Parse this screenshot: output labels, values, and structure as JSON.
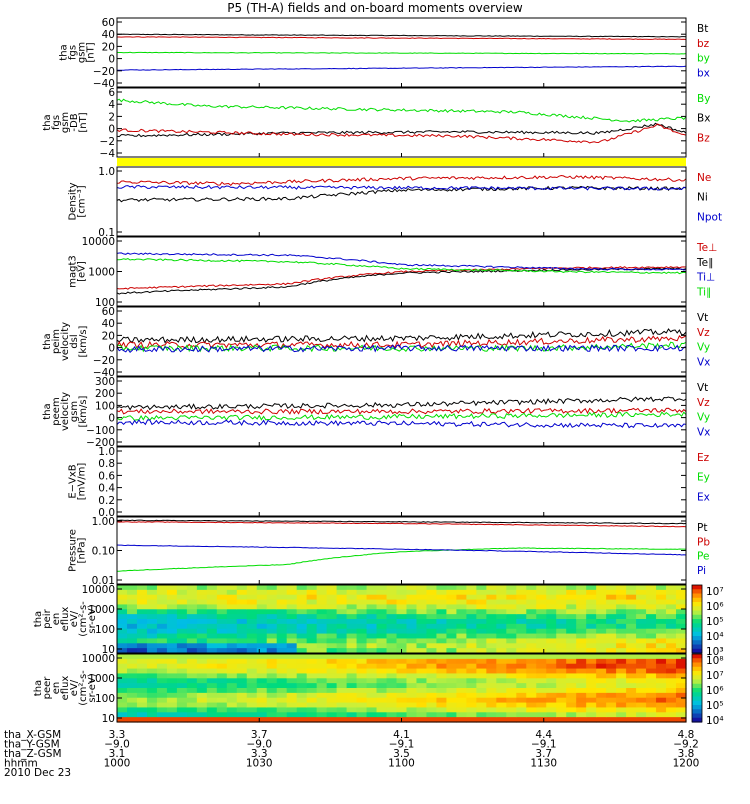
{
  "title": "P5 (TH-A) fields and on-board moments overview",
  "colors": {
    "black": "#000000",
    "red": "#cc0000",
    "green": "#00dd00",
    "blue": "#0000cc",
    "yellow": "#ffff00",
    "axis": "#000000"
  },
  "chart_data": [
    {
      "type": "line",
      "ylabel": [
        "tha",
        "fgs",
        "gsm",
        "[nT]"
      ],
      "yticks": [
        "60",
        "40",
        "20",
        "0",
        "−20",
        "−40"
      ],
      "ylim": [
        -45,
        65
      ],
      "legend": [
        {
          "name": "Bt",
          "color": "#000000"
        },
        {
          "name": "bz",
          "color": "#cc0000"
        },
        {
          "name": "by",
          "color": "#00dd00"
        },
        {
          "name": "bx",
          "color": "#0000cc"
        }
      ],
      "series": [
        {
          "name": "Bt",
          "color": "#000000",
          "x": [
            0,
            0.5,
            1
          ],
          "y": [
            39,
            37,
            35
          ]
        },
        {
          "name": "bz",
          "color": "#cc0000",
          "x": [
            0,
            0.5,
            1
          ],
          "y": [
            35,
            33,
            31
          ]
        },
        {
          "name": "by",
          "color": "#00dd00",
          "x": [
            0,
            0.5,
            1
          ],
          "y": [
            10,
            9,
            8
          ]
        },
        {
          "name": "bx",
          "color": "#0000cc",
          "x": [
            0,
            0.5,
            1
          ],
          "y": [
            -18,
            -15,
            -12
          ]
        }
      ]
    },
    {
      "type": "line",
      "ylabel": [
        "tha",
        "fgs",
        "gsm",
        "-DB",
        "[nT]"
      ],
      "yticks": [
        "6",
        "4",
        "2",
        "0",
        "−2",
        "−4"
      ],
      "ylim": [
        -5,
        6.5
      ],
      "legend": [
        {
          "name": "By",
          "color": "#00dd00"
        },
        {
          "name": "Bx",
          "color": "#000000"
        },
        {
          "name": "Bz",
          "color": "#cc0000"
        }
      ],
      "series": [
        {
          "name": "By",
          "color": "#00dd00",
          "x": [
            0,
            0.15,
            0.4,
            0.7,
            0.9,
            1
          ],
          "y": [
            4.5,
            3.5,
            3.0,
            2.5,
            1.0,
            1.5
          ]
        },
        {
          "name": "Bx",
          "color": "#000000",
          "x": [
            0,
            0.3,
            0.6,
            0.85,
            0.95,
            1
          ],
          "y": [
            -1.5,
            -1.0,
            -0.8,
            -1.0,
            0.5,
            -1.0
          ]
        },
        {
          "name": "Bz",
          "color": "#cc0000",
          "x": [
            0,
            0.3,
            0.6,
            0.85,
            0.95,
            1
          ],
          "y": [
            -0.5,
            -1.2,
            -1.5,
            -2.5,
            0.3,
            -1.5
          ]
        }
      ]
    },
    {
      "type": "line",
      "ylabel": [
        "Density",
        "[cm⁻³]"
      ],
      "yscale": "log",
      "yticks": [
        "1.0",
        "0.1"
      ],
      "ylim": [
        0.1,
        1.3
      ],
      "legend": [
        {
          "name": "Ne",
          "color": "#cc0000"
        },
        {
          "name": "Ni",
          "color": "#000000"
        },
        {
          "name": "Npot",
          "color": "#0000cc"
        }
      ],
      "series": [
        {
          "name": "Ne",
          "color": "#cc0000",
          "x": [
            0,
            0.2,
            0.5,
            0.8,
            1
          ],
          "y": [
            0.75,
            0.7,
            0.85,
            0.9,
            0.8
          ]
        },
        {
          "name": "Ni",
          "color": "#000000",
          "x": [
            0,
            0.3,
            0.5,
            0.8,
            1
          ],
          "y": [
            0.38,
            0.4,
            0.55,
            0.6,
            0.58
          ]
        },
        {
          "name": "Npot",
          "color": "#0000cc",
          "x": [
            0,
            0.5,
            1
          ],
          "y": [
            0.62,
            0.6,
            0.58
          ]
        }
      ]
    },
    {
      "type": "line",
      "ylabel": [
        "magt3",
        "[eV]"
      ],
      "yscale": "log",
      "yticks": [
        "10000",
        "1000",
        "100"
      ],
      "ylim": [
        100,
        15000
      ],
      "legend": [
        {
          "name": "Te⊥",
          "color": "#cc0000"
        },
        {
          "name": "Te∥",
          "color": "#000000"
        },
        {
          "name": "Ti⊥",
          "color": "#0000cc"
        },
        {
          "name": "Ti∥",
          "color": "#00dd00"
        }
      ],
      "series": [
        {
          "name": "Te⊥",
          "color": "#cc0000",
          "x": [
            0,
            0.3,
            0.5,
            0.8,
            1
          ],
          "y": [
            350,
            500,
            1200,
            1600,
            1700
          ]
        },
        {
          "name": "Te∥",
          "color": "#000000",
          "x": [
            0,
            0.3,
            0.5,
            0.8,
            1
          ],
          "y": [
            250,
            400,
            1100,
            1400,
            1500
          ]
        },
        {
          "name": "Ti⊥",
          "color": "#0000cc",
          "x": [
            0,
            0.3,
            0.5,
            0.8,
            1
          ],
          "y": [
            4500,
            4000,
            2000,
            1500,
            1400
          ]
        },
        {
          "name": "Ti∥",
          "color": "#00dd00",
          "x": [
            0,
            0.3,
            0.5,
            0.8,
            1
          ],
          "y": [
            3000,
            2500,
            1500,
            1200,
            1100
          ]
        }
      ]
    },
    {
      "type": "line",
      "ylabel": [
        "tha",
        "peim",
        "velocity",
        "dsl",
        "[km/s]"
      ],
      "yticks": [
        "60",
        "40",
        "20",
        "0",
        "−20",
        "−40"
      ],
      "ylim": [
        -42,
        62
      ],
      "legend": [
        {
          "name": "Vt",
          "color": "#000000"
        },
        {
          "name": "Vz",
          "color": "#cc0000"
        },
        {
          "name": "Vy",
          "color": "#00dd00"
        },
        {
          "name": "Vx",
          "color": "#0000cc"
        }
      ],
      "series": [
        {
          "name": "Vt",
          "color": "#000000",
          "x": [
            0,
            0.5,
            0.75,
            1
          ],
          "y": [
            12,
            15,
            20,
            25
          ]
        },
        {
          "name": "Vz",
          "color": "#cc0000",
          "x": [
            0,
            0.5,
            0.75,
            1
          ],
          "y": [
            5,
            5,
            10,
            15
          ]
        },
        {
          "name": "Vy",
          "color": "#00dd00",
          "x": [
            0,
            0.5,
            0.75,
            1
          ],
          "y": [
            0,
            0,
            0,
            5
          ]
        },
        {
          "name": "Vx",
          "color": "#0000cc",
          "x": [
            0,
            0.5,
            0.75,
            1
          ],
          "y": [
            -2,
            0,
            0,
            0
          ]
        }
      ]
    },
    {
      "type": "line",
      "ylabel": [
        "tha",
        "peem",
        "velocity",
        "gsm",
        "[km/s]"
      ],
      "yticks": [
        "300",
        "200",
        "100",
        "0",
        "−100",
        "−200"
      ],
      "ylim": [
        -200,
        320
      ],
      "legend": [
        {
          "name": "Vt",
          "color": "#000000"
        },
        {
          "name": "Vz",
          "color": "#cc0000"
        },
        {
          "name": "Vy",
          "color": "#00dd00"
        },
        {
          "name": "Vx",
          "color": "#0000cc"
        }
      ],
      "series": [
        {
          "name": "Vt",
          "color": "#000000",
          "x": [
            0,
            0.5,
            1
          ],
          "y": [
            90,
            110,
            160
          ]
        },
        {
          "name": "Vz",
          "color": "#cc0000",
          "x": [
            0,
            0.5,
            1
          ],
          "y": [
            60,
            60,
            70
          ]
        },
        {
          "name": "Vy",
          "color": "#00dd00",
          "x": [
            0,
            0.5,
            1
          ],
          "y": [
            10,
            20,
            40
          ]
        },
        {
          "name": "Vx",
          "color": "#0000cc",
          "x": [
            0,
            0.5,
            1
          ],
          "y": [
            -20,
            -30,
            -50
          ]
        }
      ]
    },
    {
      "type": "line",
      "ylabel": [
        "E−VxB",
        "[mV/m]"
      ],
      "yticks": [
        "1.0",
        "0.8",
        "0.6",
        "0.4",
        "0.2",
        "0.0"
      ],
      "ylim": [
        0,
        1.0
      ],
      "legend": [
        {
          "name": "Ez",
          "color": "#cc0000"
        },
        {
          "name": "Ey",
          "color": "#00dd00"
        },
        {
          "name": "Ex",
          "color": "#0000cc"
        }
      ],
      "series": []
    },
    {
      "type": "line",
      "ylabel": [
        "Pressure",
        "[nPa]"
      ],
      "yscale": "log",
      "yticks": [
        "1.00",
        "0.10",
        "0.01"
      ],
      "ylim": [
        0.01,
        1.2
      ],
      "legend": [
        {
          "name": "Pt",
          "color": "#000000"
        },
        {
          "name": "Pb",
          "color": "#cc0000"
        },
        {
          "name": "Pe",
          "color": "#00dd00"
        },
        {
          "name": "Pi",
          "color": "#0000cc"
        }
      ],
      "series": [
        {
          "name": "Pt",
          "color": "#000000",
          "x": [
            0,
            0.5,
            1
          ],
          "y": [
            0.95,
            0.85,
            0.75
          ]
        },
        {
          "name": "Pb",
          "color": "#cc0000",
          "x": [
            0,
            0.5,
            1
          ],
          "y": [
            0.85,
            0.75,
            0.6
          ]
        },
        {
          "name": "Pe",
          "color": "#00dd00",
          "x": [
            0,
            0.3,
            0.5,
            0.7,
            1
          ],
          "y": [
            0.025,
            0.04,
            0.1,
            0.13,
            0.12
          ]
        },
        {
          "name": "Pi",
          "color": "#0000cc",
          "x": [
            0,
            0.5,
            1
          ],
          "y": [
            0.16,
            0.12,
            0.08
          ]
        }
      ]
    },
    {
      "type": "heatmap",
      "ylabel": [
        "tha",
        "peir",
        "en",
        "eflux",
        "eV/",
        "(cm²-s-",
        "sr-eV)"
      ],
      "yscale": "log",
      "yticks": [
        "10000",
        "1000",
        "100",
        "10"
      ],
      "ylim": [
        7,
        20000
      ],
      "colorbar": [
        "10⁷",
        "10⁶",
        "10⁵",
        "10⁴",
        "10³"
      ]
    },
    {
      "type": "heatmap",
      "ylabel": [
        "tha",
        "peer",
        "en",
        "eflux",
        "eV/",
        "(cm²-s-",
        "sr-eV)"
      ],
      "yscale": "log",
      "yticks": [
        "10000",
        "1000",
        "100",
        "10"
      ],
      "ylim": [
        7,
        20000
      ],
      "colorbar": [
        "10⁸",
        "10⁷",
        "10⁶",
        "10⁵",
        "10⁴"
      ]
    }
  ],
  "footer": {
    "row_labels": [
      "tha_X-GSM",
      "tha_Y-GSM",
      "tha_Z-GSM",
      "hhmm",
      "2010 Dec 23"
    ],
    "columns": [
      {
        "x": "3.3",
        "y": "−9.0",
        "z": "3.1",
        "t": "1000"
      },
      {
        "x": "3.7",
        "y": "−9.0",
        "z": "3.3",
        "t": "1030"
      },
      {
        "x": "4.1",
        "y": "−9.1",
        "z": "3.5",
        "t": "1100"
      },
      {
        "x": "4.4",
        "y": "−9.1",
        "z": "3.7",
        "t": "1130"
      },
      {
        "x": "4.8",
        "y": "−9.2",
        "z": "3.8",
        "t": "1200"
      }
    ]
  }
}
